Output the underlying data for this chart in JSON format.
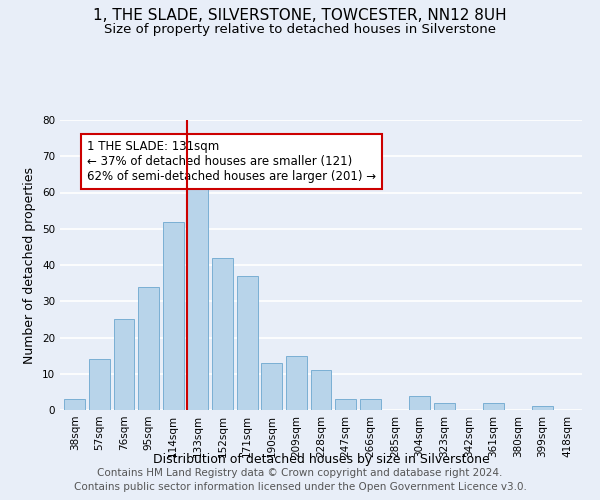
{
  "title": "1, THE SLADE, SILVERSTONE, TOWCESTER, NN12 8UH",
  "subtitle": "Size of property relative to detached houses in Silverstone",
  "xlabel": "Distribution of detached houses by size in Silverstone",
  "ylabel": "Number of detached properties",
  "bar_labels": [
    "38sqm",
    "57sqm",
    "76sqm",
    "95sqm",
    "114sqm",
    "133sqm",
    "152sqm",
    "171sqm",
    "190sqm",
    "209sqm",
    "228sqm",
    "247sqm",
    "266sqm",
    "285sqm",
    "304sqm",
    "323sqm",
    "342sqm",
    "361sqm",
    "380sqm",
    "399sqm",
    "418sqm"
  ],
  "bar_values": [
    3,
    14,
    25,
    34,
    52,
    63,
    42,
    37,
    13,
    15,
    11,
    3,
    3,
    0,
    4,
    2,
    0,
    2,
    0,
    1,
    0
  ],
  "bar_color": "#b8d4ea",
  "bar_edge_color": "#7aafd4",
  "highlight_index": 5,
  "highlight_line_color": "#cc0000",
  "annotation_text": "1 THE SLADE: 131sqm\n← 37% of detached houses are smaller (121)\n62% of semi-detached houses are larger (201) →",
  "annotation_box_color": "#ffffff",
  "annotation_box_edge_color": "#cc0000",
  "ylim": [
    0,
    80
  ],
  "yticks": [
    0,
    10,
    20,
    30,
    40,
    50,
    60,
    70,
    80
  ],
  "footer_line1": "Contains HM Land Registry data © Crown copyright and database right 2024.",
  "footer_line2": "Contains public sector information licensed under the Open Government Licence v3.0.",
  "background_color": "#e8eef8",
  "grid_color": "#ffffff",
  "title_fontsize": 11,
  "subtitle_fontsize": 9.5,
  "axis_label_fontsize": 9,
  "tick_fontsize": 7.5,
  "annotation_fontsize": 8.5,
  "footer_fontsize": 7.5
}
